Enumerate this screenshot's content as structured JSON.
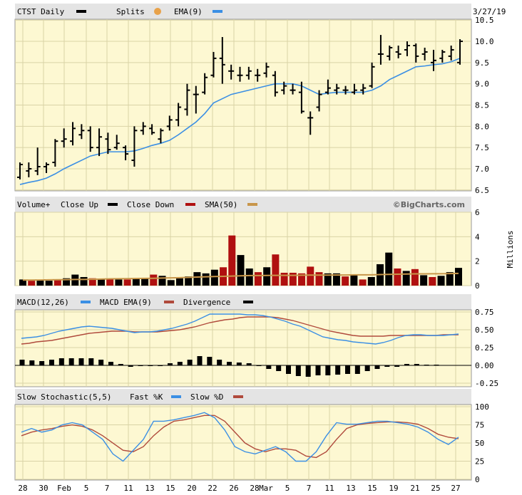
{
  "colors": {
    "background": "#fdf8d2",
    "header": "#e4e4e4",
    "grid": "#d9d3a6",
    "price": "#000000",
    "ema": "#3b8fe4",
    "vol_up": "#000000",
    "vol_down": "#b01010",
    "sma": "#c8964a",
    "macd": "#3b8fe4",
    "macd_ema": "#b04a3c",
    "divergence": "#000000",
    "fast_k": "#3b8fe4",
    "slow_d": "#b04a3c"
  },
  "header": {
    "price": {
      "symbol_label": "CTST Daily",
      "splits_label": "Splits",
      "ema_label": "EMA(9)",
      "date": "3/27/19"
    },
    "volume": {
      "label": "Volume+",
      "close_up_label": "Close Up",
      "close_down_label": "Close Down",
      "sma_label": "SMA(50)",
      "brand": "©BigCharts.com"
    },
    "macd": {
      "label": "MACD(12,26)",
      "macd_ema_label": "MACD EMA(9)",
      "divergence_label": "Divergence"
    },
    "stoch": {
      "label": "Slow Stochastic(5,5)",
      "fast_label": "Fast %K",
      "slow_label": "Slow %D"
    }
  },
  "x_axis_labels": [
    "28",
    "30",
    "Feb",
    "5",
    "7",
    "11",
    "13",
    "15",
    "20",
    "22",
    "26",
    "28",
    "Mar",
    "5",
    "7",
    "11",
    "13",
    "15",
    "19",
    "21",
    "25",
    "27"
  ],
  "volume_unit": "Millions",
  "chart_data": [
    {
      "type": "ohlc",
      "name": "price",
      "y_ticks": [
        "10.5",
        "10.0",
        "9.5",
        "9.0",
        "8.5",
        "8.0",
        "7.5",
        "7.0",
        "6.5"
      ],
      "ylim": [
        6.5,
        10.5
      ],
      "grid": true,
      "bars": [
        {
          "high": 7.15,
          "low": 6.75,
          "open": 6.8,
          "close": 7.1
        },
        {
          "high": 7.15,
          "low": 6.8,
          "open": 6.95,
          "close": 7.0
        },
        {
          "high": 7.5,
          "low": 6.85,
          "open": 6.95,
          "close": 7.05
        },
        {
          "high": 7.15,
          "low": 6.9,
          "open": 7.05,
          "close": 7.1
        },
        {
          "high": 7.7,
          "low": 7.05,
          "open": 7.15,
          "close": 7.65
        },
        {
          "high": 7.95,
          "low": 7.5,
          "open": 7.65,
          "close": 7.7
        },
        {
          "high": 8.1,
          "low": 7.55,
          "open": 7.65,
          "close": 7.95
        },
        {
          "high": 8.05,
          "low": 7.7,
          "open": 7.8,
          "close": 7.9
        },
        {
          "high": 8.0,
          "low": 7.4,
          "open": 7.9,
          "close": 7.5
        },
        {
          "high": 7.95,
          "low": 7.3,
          "open": 7.5,
          "close": 7.75
        },
        {
          "high": 7.85,
          "low": 7.35,
          "open": 7.7,
          "close": 7.45
        },
        {
          "high": 7.8,
          "low": 7.45,
          "open": 7.5,
          "close": 7.6
        },
        {
          "high": 7.55,
          "low": 7.2,
          "open": 7.5,
          "close": 7.35
        },
        {
          "high": 8.0,
          "low": 7.05,
          "open": 7.2,
          "close": 7.9
        },
        {
          "high": 8.1,
          "low": 7.8,
          "open": 7.9,
          "close": 8.0
        },
        {
          "high": 8.05,
          "low": 7.8,
          "open": 7.95,
          "close": 7.85
        },
        {
          "high": 7.95,
          "low": 7.6,
          "open": 7.7,
          "close": 7.9
        },
        {
          "high": 8.25,
          "low": 7.9,
          "open": 8.0,
          "close": 8.15
        },
        {
          "high": 8.55,
          "low": 8.0,
          "open": 8.15,
          "close": 8.45
        },
        {
          "high": 9.0,
          "low": 8.25,
          "open": 8.4,
          "close": 8.85
        },
        {
          "high": 8.95,
          "low": 8.3,
          "open": 8.75,
          "close": 8.75
        },
        {
          "high": 9.25,
          "low": 8.75,
          "open": 8.8,
          "close": 9.15
        },
        {
          "high": 9.75,
          "low": 9.15,
          "open": 9.2,
          "close": 9.6
        },
        {
          "high": 10.1,
          "low": 9.0,
          "open": 9.6,
          "close": 9.45
        },
        {
          "high": 9.45,
          "low": 9.1,
          "open": 9.3,
          "close": 9.3
        },
        {
          "high": 9.4,
          "low": 9.05,
          "open": 9.2,
          "close": 9.2
        },
        {
          "high": 9.4,
          "low": 9.1,
          "open": 9.2,
          "close": 9.3
        },
        {
          "high": 9.35,
          "low": 9.05,
          "open": 9.2,
          "close": 9.2
        },
        {
          "high": 9.5,
          "low": 9.15,
          "open": 9.25,
          "close": 9.4
        },
        {
          "high": 9.3,
          "low": 8.7,
          "open": 9.2,
          "close": 8.8
        },
        {
          "high": 9.05,
          "low": 8.75,
          "open": 8.85,
          "close": 8.95
        },
        {
          "high": 9.0,
          "low": 8.75,
          "open": 8.85,
          "close": 8.85
        },
        {
          "high": 9.05,
          "low": 8.3,
          "open": 8.8,
          "close": 8.35
        },
        {
          "high": 8.35,
          "low": 7.8,
          "open": 8.2,
          "close": 8.2
        },
        {
          "high": 8.85,
          "low": 8.35,
          "open": 8.45,
          "close": 8.75
        },
        {
          "high": 9.1,
          "low": 8.75,
          "open": 8.8,
          "close": 8.9
        },
        {
          "high": 9.0,
          "low": 8.75,
          "open": 8.85,
          "close": 8.9
        },
        {
          "high": 8.95,
          "low": 8.75,
          "open": 8.85,
          "close": 8.85
        },
        {
          "high": 9.0,
          "low": 8.75,
          "open": 8.8,
          "close": 8.85
        },
        {
          "high": 9.0,
          "low": 8.75,
          "open": 8.85,
          "close": 8.9
        },
        {
          "high": 9.5,
          "low": 8.9,
          "open": 8.95,
          "close": 9.4
        },
        {
          "high": 10.15,
          "low": 9.45,
          "open": 9.7,
          "close": 9.7
        },
        {
          "high": 9.9,
          "low": 9.55,
          "open": 9.65,
          "close": 9.85
        },
        {
          "high": 9.9,
          "low": 9.6,
          "open": 9.75,
          "close": 9.7
        },
        {
          "high": 10.0,
          "low": 9.65,
          "open": 9.8,
          "close": 9.9
        },
        {
          "high": 9.95,
          "low": 9.5,
          "open": 9.9,
          "close": 9.65
        },
        {
          "high": 9.85,
          "low": 9.55,
          "open": 9.7,
          "close": 9.75
        },
        {
          "high": 9.8,
          "low": 9.3,
          "open": 9.5,
          "close": 9.55
        },
        {
          "high": 9.8,
          "low": 9.5,
          "open": 9.6,
          "close": 9.75
        },
        {
          "high": 9.9,
          "low": 9.55,
          "open": 9.65,
          "close": 9.8
        },
        {
          "high": 10.05,
          "low": 9.45,
          "open": 9.5,
          "close": 10.0
        }
      ],
      "ema": [
        6.63,
        6.68,
        6.72,
        6.78,
        6.88,
        7.0,
        7.1,
        7.2,
        7.3,
        7.35,
        7.4,
        7.4,
        7.4,
        7.42,
        7.48,
        7.55,
        7.6,
        7.67,
        7.8,
        7.95,
        8.1,
        8.3,
        8.55,
        8.65,
        8.75,
        8.8,
        8.85,
        8.9,
        8.95,
        9.0,
        9.0,
        9.0,
        8.95,
        8.85,
        8.75,
        8.78,
        8.8,
        8.8,
        8.8,
        8.8,
        8.85,
        8.95,
        9.1,
        9.2,
        9.3,
        9.4,
        9.42,
        9.45,
        9.47,
        9.52,
        9.6
      ]
    },
    {
      "type": "bar",
      "name": "volume",
      "y_ticks": [
        "6",
        "4",
        "2",
        "0"
      ],
      "ylim": [
        0,
        6
      ],
      "values": [
        0.5,
        0.4,
        0.45,
        0.4,
        0.5,
        0.6,
        0.9,
        0.7,
        0.6,
        0.5,
        0.55,
        0.5,
        0.5,
        0.55,
        0.6,
        0.9,
        0.8,
        0.45,
        0.6,
        0.75,
        1.1,
        1.0,
        1.3,
        1.5,
        4.1,
        2.5,
        1.4,
        1.1,
        1.5,
        2.55,
        1.05,
        1.05,
        1.0,
        1.55,
        1.1,
        1.0,
        1.0,
        0.75,
        0.9,
        0.5,
        0.7,
        1.75,
        2.7,
        1.4,
        1.2,
        1.35,
        0.85,
        0.7,
        0.8,
        1.1,
        1.45
      ],
      "close_up": [
        true,
        false,
        true,
        true,
        false,
        true,
        true,
        true,
        false,
        true,
        false,
        true,
        false,
        true,
        true,
        false,
        true,
        true,
        true,
        true,
        true,
        true,
        true,
        false,
        false,
        true,
        true,
        false,
        true,
        false,
        false,
        false,
        false,
        false,
        false,
        true,
        true,
        false,
        true,
        false,
        true,
        true,
        true,
        false,
        true,
        false,
        true,
        false,
        true,
        true,
        true
      ],
      "sma": [
        0.45,
        0.45,
        0.46,
        0.47,
        0.48,
        0.49,
        0.5,
        0.5,
        0.52,
        0.53,
        0.55,
        0.56,
        0.57,
        0.58,
        0.59,
        0.6,
        0.62,
        0.63,
        0.65,
        0.67,
        0.7,
        0.72,
        0.74,
        0.76,
        0.78,
        0.8,
        0.82,
        0.82,
        0.83,
        0.84,
        0.84,
        0.84,
        0.85,
        0.86,
        0.86,
        0.86,
        0.87,
        0.87,
        0.88,
        0.88,
        0.88,
        0.9,
        0.92,
        0.93,
        0.95,
        0.96,
        0.96,
        0.97,
        0.97,
        0.98,
        1.0
      ]
    },
    {
      "type": "line",
      "name": "macd",
      "y_ticks": [
        "0.75",
        "0.50",
        "0.25",
        "0.00",
        "-0.25"
      ],
      "ylim": [
        -0.3,
        0.78
      ],
      "macd": [
        0.38,
        0.39,
        0.4,
        0.42,
        0.45,
        0.48,
        0.5,
        0.52,
        0.54,
        0.55,
        0.54,
        0.53,
        0.52,
        0.5,
        0.48,
        0.46,
        0.47,
        0.47,
        0.48,
        0.5,
        0.52,
        0.55,
        0.58,
        0.62,
        0.67,
        0.72,
        0.72,
        0.72,
        0.72,
        0.72,
        0.71,
        0.71,
        0.7,
        0.68,
        0.65,
        0.62,
        0.58,
        0.55,
        0.5,
        0.45,
        0.4,
        0.38,
        0.36,
        0.35,
        0.33,
        0.32,
        0.31,
        0.3,
        0.32,
        0.35,
        0.39,
        0.42,
        0.43,
        0.43,
        0.42,
        0.42,
        0.42,
        0.43,
        0.44
      ],
      "macd_ema": [
        0.3,
        0.31,
        0.33,
        0.34,
        0.35,
        0.37,
        0.39,
        0.41,
        0.43,
        0.45,
        0.46,
        0.47,
        0.48,
        0.48,
        0.48,
        0.47,
        0.47,
        0.47,
        0.47,
        0.48,
        0.49,
        0.5,
        0.52,
        0.54,
        0.57,
        0.6,
        0.62,
        0.64,
        0.65,
        0.67,
        0.68,
        0.68,
        0.68,
        0.68,
        0.67,
        0.65,
        0.63,
        0.6,
        0.57,
        0.54,
        0.51,
        0.48,
        0.46,
        0.44,
        0.42,
        0.41,
        0.41,
        0.41,
        0.41,
        0.42,
        0.42,
        0.42,
        0.42,
        0.42,
        0.42,
        0.42,
        0.43,
        0.43,
        0.43
      ],
      "divergence": [
        0.08,
        0.07,
        0.06,
        0.08,
        0.1,
        0.1,
        0.1,
        0.1,
        0.08,
        0.05,
        0.02,
        -0.02,
        0,
        0,
        0,
        0.03,
        0.05,
        0.08,
        0.13,
        0.12,
        0.08,
        0.05,
        0.04,
        0.03,
        0,
        -0.05,
        -0.08,
        -0.12,
        -0.15,
        -0.16,
        -0.14,
        -0.14,
        -0.13,
        -0.12,
        -0.12,
        -0.08,
        -0.05,
        -0.02,
        -0.02,
        0.02,
        0.02,
        0.01,
        0.01
      ]
    },
    {
      "type": "line",
      "name": "stochastic",
      "y_ticks": [
        "100",
        "75",
        "50",
        "25",
        "0"
      ],
      "ylim": [
        0,
        100
      ],
      "fast_k": [
        65,
        70,
        65,
        68,
        75,
        78,
        75,
        65,
        55,
        35,
        25,
        40,
        55,
        80,
        80,
        82,
        85,
        88,
        92,
        85,
        68,
        45,
        38,
        35,
        40,
        45,
        38,
        25,
        25,
        38,
        60,
        78,
        76,
        76,
        78,
        80,
        80,
        78,
        76,
        72,
        65,
        55,
        48,
        58
      ],
      "slow_d": [
        60,
        65,
        68,
        70,
        73,
        75,
        73,
        68,
        60,
        50,
        40,
        38,
        45,
        60,
        72,
        80,
        82,
        85,
        88,
        88,
        80,
        65,
        50,
        42,
        38,
        42,
        42,
        40,
        32,
        30,
        38,
        55,
        70,
        75,
        77,
        78,
        79,
        79,
        78,
        76,
        70,
        62,
        58,
        56
      ]
    }
  ]
}
